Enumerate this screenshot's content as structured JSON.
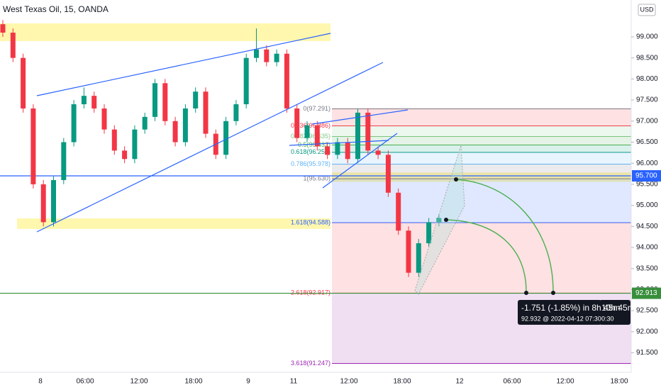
{
  "header": {
    "title": "West Texas Oil, 15, OANDA",
    "currency": "USD"
  },
  "chart_data": {
    "type": "candlestick",
    "ylim": [
      91.037,
      99.875
    ],
    "yticks": [
      {
        "value": 99,
        "label": "99.000"
      },
      {
        "value": 98.5,
        "label": "98.500"
      },
      {
        "value": 98,
        "label": "98.000"
      },
      {
        "value": 97.5,
        "label": "97.500"
      },
      {
        "value": 97,
        "label": "97.000"
      },
      {
        "value": 96.5,
        "label": "96.500"
      },
      {
        "value": 96,
        "label": "96.000"
      },
      {
        "value": 95.5,
        "label": "95.500"
      },
      {
        "value": 95,
        "label": "95.000"
      },
      {
        "value": 94.5,
        "label": "94.500"
      },
      {
        "value": 94,
        "label": "94.000"
      },
      {
        "value": 93.5,
        "label": "93.500"
      },
      {
        "value": 93,
        "label": "93.000"
      },
      {
        "value": 92.5,
        "label": "92.500"
      },
      {
        "value": 92,
        "label": "92.000"
      },
      {
        "value": 91.5,
        "label": "91.500"
      }
    ],
    "x_labels": [
      "8",
      "06:00",
      "12:00",
      "18:00",
      "9",
      "11",
      "12:00",
      "18:00",
      "12",
      "06:00",
      "12:00",
      "18:00"
    ],
    "up_color": "#089981",
    "down_color": "#f23645",
    "candles": [
      [
        99.3,
        99.4,
        99.0,
        99.1
      ],
      [
        99.1,
        99.2,
        98.4,
        98.5
      ],
      [
        98.5,
        98.6,
        97.2,
        97.3
      ],
      [
        97.3,
        97.4,
        95.4,
        95.5
      ],
      [
        95.5,
        95.6,
        94.5,
        94.6
      ],
      [
        94.6,
        95.7,
        94.5,
        95.6
      ],
      [
        95.6,
        96.6,
        95.5,
        96.5
      ],
      [
        96.5,
        97.5,
        96.4,
        97.4
      ],
      [
        97.4,
        97.8,
        97.3,
        97.6
      ],
      [
        97.6,
        97.7,
        97.2,
        97.3
      ],
      [
        97.3,
        97.4,
        96.7,
        96.8
      ],
      [
        96.8,
        96.9,
        96.2,
        96.3
      ],
      [
        96.3,
        96.4,
        96.0,
        96.1
      ],
      [
        96.1,
        96.9,
        96.0,
        96.8
      ],
      [
        96.8,
        97.2,
        96.7,
        97.1
      ],
      [
        97.1,
        98.0,
        97.0,
        97.9
      ],
      [
        97.9,
        98.0,
        96.9,
        97.0
      ],
      [
        97.0,
        97.1,
        96.4,
        96.5
      ],
      [
        96.5,
        97.4,
        96.4,
        97.3
      ],
      [
        97.3,
        97.8,
        97.2,
        97.7
      ],
      [
        97.7,
        97.8,
        96.6,
        96.7
      ],
      [
        96.7,
        96.8,
        96.1,
        96.2
      ],
      [
        96.2,
        97.1,
        96.1,
        97.0
      ],
      [
        97.0,
        97.5,
        96.9,
        97.4
      ],
      [
        97.4,
        98.6,
        97.3,
        98.5
      ],
      [
        98.5,
        99.2,
        98.4,
        98.7
      ],
      [
        98.7,
        98.8,
        98.3,
        98.4
      ],
      [
        98.4,
        98.7,
        98.3,
        98.6
      ],
      [
        98.6,
        98.7,
        97.2,
        97.3
      ],
      [
        97.3,
        97.4,
        96.5,
        96.6
      ],
      [
        96.6,
        97.0,
        96.5,
        96.9
      ],
      [
        96.9,
        97.0,
        96.3,
        96.4
      ],
      [
        96.4,
        96.5,
        96.1,
        96.2
      ],
      [
        96.2,
        96.6,
        96.1,
        96.5
      ],
      [
        96.5,
        96.6,
        96.0,
        96.1
      ],
      [
        96.1,
        97.3,
        96.0,
        97.2
      ],
      [
        97.2,
        97.3,
        96.2,
        96.3
      ],
      [
        96.3,
        96.4,
        96.1,
        96.2
      ],
      [
        96.2,
        96.3,
        95.2,
        95.3
      ],
      [
        95.3,
        95.4,
        94.3,
        94.4
      ],
      [
        94.4,
        94.5,
        93.3,
        93.4
      ],
      [
        93.4,
        94.2,
        93.3,
        94.1
      ],
      [
        94.1,
        94.7,
        94.0,
        94.6
      ],
      [
        94.6,
        94.8,
        94.5,
        94.7
      ]
    ],
    "zones": [
      {
        "top": 99.32,
        "bottom": 98.9,
        "color": "#fff176"
      },
      {
        "top": 94.69,
        "bottom": 94.44,
        "color": "#fff176"
      },
      {
        "top": 95.78,
        "bottom": 95.56,
        "color": "#fff176"
      }
    ],
    "fib_levels": [
      {
        "value": 97.291,
        "label": "0(97.291)",
        "color": "#787b86"
      },
      {
        "value": 96.886,
        "label": "0.236(96.886)",
        "color": "#f23645"
      },
      {
        "value": 96.635,
        "label": "0.382(96.635)",
        "color": "#81c784"
      },
      {
        "value": 96.432,
        "label": "0.5(96.432)",
        "color": "#4caf50"
      },
      {
        "value": 96.258,
        "label": "0.618(96.258)",
        "color": "#089981"
      },
      {
        "value": 95.978,
        "label": "0.786(95.978)",
        "color": "#64b5f6"
      },
      {
        "value": 95.63,
        "label": "1(95.630)",
        "color": "#787b86"
      },
      {
        "value": 94.588,
        "label": "1.618(94.588)",
        "color": "#2962ff"
      },
      {
        "value": 92.917,
        "label": "2.618(92.917)",
        "color": "#f23645"
      },
      {
        "value": 91.247,
        "label": "3.618(91.247)",
        "color": "#9c27b0"
      }
    ],
    "price_lines": [
      {
        "value": 95.7,
        "label": "95.700",
        "color": "#2962ff"
      },
      {
        "value": 92.913,
        "label": "92.913",
        "color": "#388e3c"
      }
    ],
    "tooltip": {
      "main": "-1.751 (-1.85%) in 8h 45m",
      "sub": "92.932 @ 2022-04-12  07:30",
      "behind_main": "10h 45m",
      "behind_sub": "0:30"
    }
  }
}
